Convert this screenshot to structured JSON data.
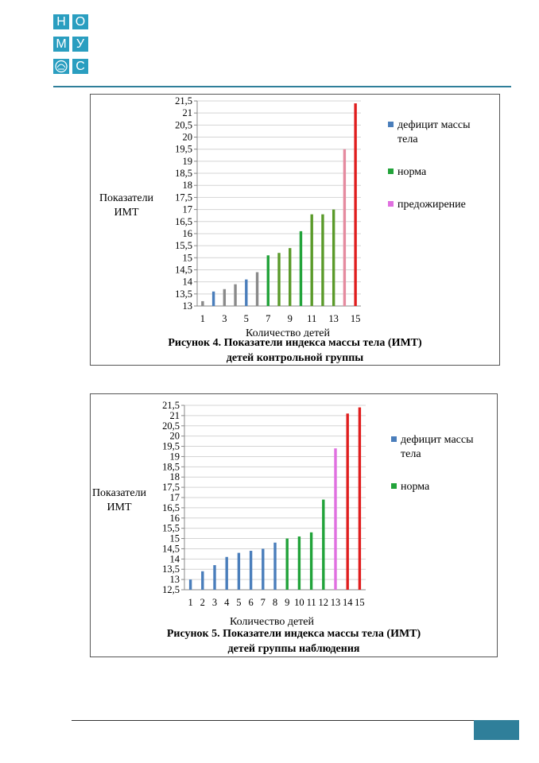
{
  "logo": {
    "letters": [
      "Н",
      "О",
      "М",
      "У",
      "",
      "С"
    ]
  },
  "colors": {
    "deficit": "#4a7ebb",
    "norm": "#22a33a",
    "norm_dark": "#5a9a2a",
    "over": "#e58ba0",
    "obese": "#e01e1e",
    "accent": "#2f7f9a"
  },
  "figures": [
    {
      "caption_line1": "Рисунок 4. Показатели индекса массы тела (ИМТ)",
      "caption_line2": "детей контрольной группы",
      "chart_data": {
        "type": "bar",
        "xlabel": "Количество детей",
        "ylabel": "Показатели ИМТ",
        "ylim": [
          13,
          21.5
        ],
        "y_ticks": [
          "13",
          "13,5",
          "14",
          "14,5",
          "15",
          "15,5",
          "16",
          "16,5",
          "17",
          "17,5",
          "18",
          "18,5",
          "19",
          "19,5",
          "20",
          "20,5",
          "21",
          "21,5"
        ],
        "x_tick_labels": [
          "1",
          "3",
          "5",
          "7",
          "9",
          "11",
          "13",
          "15"
        ],
        "categories": [
          1,
          2,
          3,
          4,
          5,
          6,
          7,
          8,
          9,
          10,
          11,
          12,
          13,
          14,
          15
        ],
        "values": [
          13.2,
          13.6,
          13.7,
          13.9,
          14.1,
          14.4,
          15.1,
          15.2,
          15.4,
          16.1,
          16.8,
          16.8,
          17.0,
          19.5,
          21.4
        ],
        "bar_colors": [
          "#8a8a8a",
          "#4a7ebb",
          "#8a8a8a",
          "#8a8a8a",
          "#4a7ebb",
          "#8a8a8a",
          "#22a33a",
          "#5a9a2a",
          "#5a9a2a",
          "#22a33a",
          "#5a9a2a",
          "#5a9a2a",
          "#5a9a2a",
          "#e58ba0",
          "#e01e1e"
        ],
        "legend": [
          {
            "lines": [
              "дефицит массы",
              "тела"
            ],
            "color": "#4a7ebb"
          },
          {
            "lines": [
              "норма"
            ],
            "color": "#22a33a"
          },
          {
            "lines": [
              "предожирение"
            ],
            "color": "#e070e0"
          }
        ]
      }
    },
    {
      "caption_line1": "Рисунок 5. Показатели индекса массы тела (ИМТ)",
      "caption_line2": "детей группы наблюдения",
      "chart_data": {
        "type": "bar",
        "xlabel": "Количество детей",
        "ylabel": "Показатели ИМТ",
        "ylim": [
          12.5,
          21.5
        ],
        "y_ticks": [
          "12,5",
          "13",
          "13,5",
          "14",
          "14,5",
          "15",
          "15,5",
          "16",
          "16,5",
          "17",
          "17,5",
          "18",
          "18,5",
          "19",
          "19,5",
          "20",
          "20,5",
          "21",
          "21,5"
        ],
        "x_tick_labels": [
          "1",
          "2",
          "3",
          "4",
          "5",
          "6",
          "7",
          "8",
          "9",
          "10",
          "11",
          "12",
          "13",
          "14",
          "15"
        ],
        "categories": [
          1,
          2,
          3,
          4,
          5,
          6,
          7,
          8,
          9,
          10,
          11,
          12,
          13,
          14,
          15
        ],
        "values": [
          13.0,
          13.4,
          13.7,
          14.1,
          14.3,
          14.4,
          14.5,
          14.8,
          15.0,
          15.1,
          15.3,
          16.9,
          19.4,
          21.1,
          21.4
        ],
        "bar_colors": [
          "#4a7ebb",
          "#4a7ebb",
          "#4a7ebb",
          "#4a7ebb",
          "#4a7ebb",
          "#4a7ebb",
          "#4a7ebb",
          "#4a7ebb",
          "#22a33a",
          "#22a33a",
          "#22a33a",
          "#22a33a",
          "#e070e0",
          "#e01e1e",
          "#e01e1e"
        ],
        "legend": [
          {
            "lines": [
              "дефицит массы",
              "тела"
            ],
            "color": "#4a7ebb"
          },
          {
            "lines": [
              "норма"
            ],
            "color": "#22a33a"
          }
        ]
      }
    }
  ]
}
